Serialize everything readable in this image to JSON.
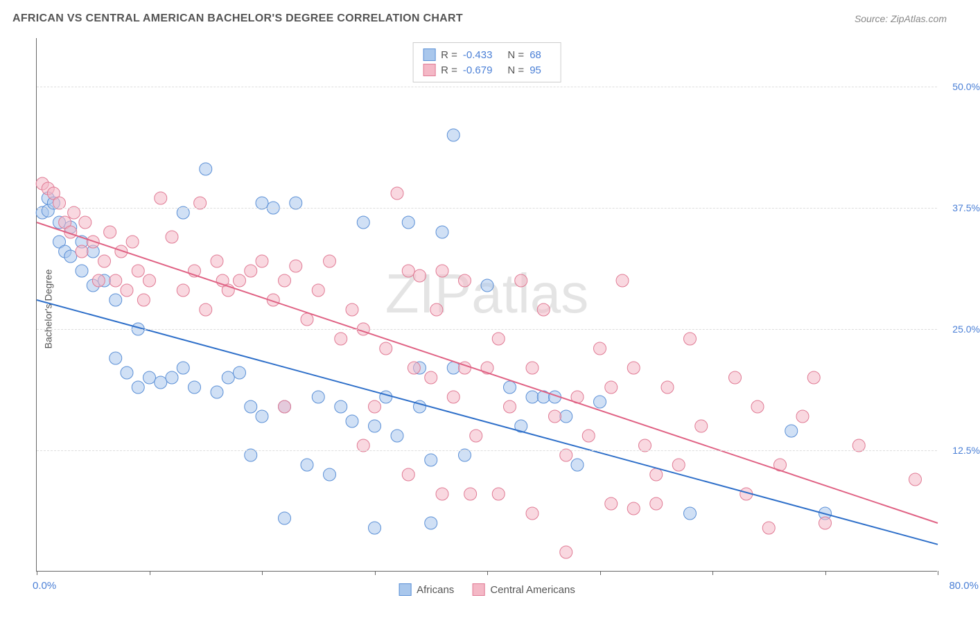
{
  "title": "AFRICAN VS CENTRAL AMERICAN BACHELOR'S DEGREE CORRELATION CHART",
  "source": "Source: ZipAtlas.com",
  "watermark": "ZIPatlas",
  "chart": {
    "type": "scatter",
    "background_color": "#ffffff",
    "grid_color": "#dddddd",
    "axis_color": "#666666",
    "y_label": "Bachelor's Degree",
    "y_label_color": "#555555",
    "tick_label_color": "#4a7fd6",
    "tick_fontsize": 14,
    "xlim": [
      0,
      80
    ],
    "ylim": [
      0,
      55
    ],
    "x_ticks": [
      0,
      10,
      20,
      30,
      40,
      50,
      60,
      70,
      80
    ],
    "x_tick_labels": {
      "0": "0.0%",
      "80": "80.0%"
    },
    "y_grid": [
      12.5,
      25.0,
      37.5,
      50.0
    ],
    "y_grid_labels": [
      "12.5%",
      "25.0%",
      "37.5%",
      "50.0%"
    ],
    "marker_radius": 9,
    "marker_opacity": 0.55,
    "line_width": 2,
    "series": [
      {
        "name": "Africans",
        "fill": "#a9c7ec",
        "stroke": "#5a8fd6",
        "line_color": "#2e6fc9",
        "trend": {
          "x1": 0,
          "y1": 28,
          "x2": 80,
          "y2": 2.8
        },
        "stats": {
          "R": "-0.433",
          "N": "68"
        },
        "points": [
          [
            0.5,
            37
          ],
          [
            1,
            38.5
          ],
          [
            1,
            37.2
          ],
          [
            1.5,
            38
          ],
          [
            2,
            36
          ],
          [
            2,
            34
          ],
          [
            2.5,
            33
          ],
          [
            3,
            32.5
          ],
          [
            3,
            35.5
          ],
          [
            4,
            31
          ],
          [
            4,
            34
          ],
          [
            5,
            29.5
          ],
          [
            5,
            33
          ],
          [
            6,
            30
          ],
          [
            7,
            28
          ],
          [
            7,
            22
          ],
          [
            8,
            20.5
          ],
          [
            9,
            25
          ],
          [
            9,
            19
          ],
          [
            10,
            20
          ],
          [
            11,
            19.5
          ],
          [
            12,
            20
          ],
          [
            13,
            21
          ],
          [
            13,
            37
          ],
          [
            14,
            19
          ],
          [
            15,
            41.5
          ],
          [
            16,
            18.5
          ],
          [
            17,
            20
          ],
          [
            18,
            20.5
          ],
          [
            19,
            17
          ],
          [
            19,
            12
          ],
          [
            20,
            16
          ],
          [
            20,
            38
          ],
          [
            21,
            37.5
          ],
          [
            22,
            17
          ],
          [
            22,
            5.5
          ],
          [
            23,
            38
          ],
          [
            24,
            11
          ],
          [
            25,
            18
          ],
          [
            26,
            10
          ],
          [
            27,
            17
          ],
          [
            28,
            15.5
          ],
          [
            29,
            36
          ],
          [
            30,
            15
          ],
          [
            30,
            4.5
          ],
          [
            31,
            18
          ],
          [
            32,
            14
          ],
          [
            33,
            36
          ],
          [
            34,
            17
          ],
          [
            34,
            21
          ],
          [
            35,
            11.5
          ],
          [
            35,
            5
          ],
          [
            36,
            35
          ],
          [
            37,
            21
          ],
          [
            37,
            45
          ],
          [
            38,
            12
          ],
          [
            40,
            29.5
          ],
          [
            42,
            19
          ],
          [
            43,
            15
          ],
          [
            44,
            18
          ],
          [
            45,
            18
          ],
          [
            46,
            18
          ],
          [
            47,
            16
          ],
          [
            48,
            11
          ],
          [
            50,
            17.5
          ],
          [
            58,
            6
          ],
          [
            67,
            14.5
          ],
          [
            70,
            6
          ]
        ]
      },
      {
        "name": "Central Americans",
        "fill": "#f4b8c6",
        "stroke": "#e07a94",
        "line_color": "#e06284",
        "trend": {
          "x1": 0,
          "y1": 36,
          "x2": 80,
          "y2": 5
        },
        "stats": {
          "R": "-0.679",
          "N": "95"
        },
        "points": [
          [
            0.5,
            40
          ],
          [
            1,
            39.5
          ],
          [
            1.5,
            39
          ],
          [
            2,
            38
          ],
          [
            2.5,
            36
          ],
          [
            3,
            35
          ],
          [
            3.3,
            37
          ],
          [
            4,
            33
          ],
          [
            4.3,
            36
          ],
          [
            5,
            34
          ],
          [
            5.5,
            30
          ],
          [
            6,
            32
          ],
          [
            6.5,
            35
          ],
          [
            7,
            30
          ],
          [
            7.5,
            33
          ],
          [
            8,
            29
          ],
          [
            8.5,
            34
          ],
          [
            9,
            31
          ],
          [
            9.5,
            28
          ],
          [
            10,
            30
          ],
          [
            11,
            38.5
          ],
          [
            12,
            34.5
          ],
          [
            13,
            29
          ],
          [
            14,
            31
          ],
          [
            14.5,
            38
          ],
          [
            15,
            27
          ],
          [
            16,
            32
          ],
          [
            16.5,
            30
          ],
          [
            17,
            29
          ],
          [
            18,
            30
          ],
          [
            19,
            31
          ],
          [
            20,
            32
          ],
          [
            21,
            28
          ],
          [
            22,
            30
          ],
          [
            23,
            31.5
          ],
          [
            24,
            26
          ],
          [
            25,
            29
          ],
          [
            26,
            32
          ],
          [
            27,
            24
          ],
          [
            28,
            27
          ],
          [
            29,
            25
          ],
          [
            30,
            17
          ],
          [
            31,
            23
          ],
          [
            32,
            39
          ],
          [
            33,
            31
          ],
          [
            33.5,
            21
          ],
          [
            34,
            30.5
          ],
          [
            35,
            20
          ],
          [
            35.5,
            27
          ],
          [
            36,
            31
          ],
          [
            37,
            18
          ],
          [
            38,
            21
          ],
          [
            38.5,
            8
          ],
          [
            39,
            14
          ],
          [
            40,
            21
          ],
          [
            41,
            24
          ],
          [
            42,
            17
          ],
          [
            43,
            30
          ],
          [
            44,
            21
          ],
          [
            45,
            27
          ],
          [
            46,
            16
          ],
          [
            47,
            12
          ],
          [
            48,
            18
          ],
          [
            49,
            14
          ],
          [
            50,
            23
          ],
          [
            51,
            19
          ],
          [
            52,
            30
          ],
          [
            53,
            21
          ],
          [
            54,
            13
          ],
          [
            55,
            7
          ],
          [
            56,
            19
          ],
          [
            57,
            11
          ],
          [
            58,
            24
          ],
          [
            59,
            15
          ],
          [
            62,
            20
          ],
          [
            63,
            8
          ],
          [
            64,
            17
          ],
          [
            65,
            4.5
          ],
          [
            66,
            11
          ],
          [
            68,
            16
          ],
          [
            69,
            20
          ],
          [
            70,
            5
          ],
          [
            73,
            13
          ],
          [
            78,
            9.5
          ],
          [
            47,
            2
          ],
          [
            44,
            6
          ],
          [
            51,
            7
          ],
          [
            53,
            6.5
          ],
          [
            55,
            10
          ],
          [
            41,
            8
          ],
          [
            36,
            8
          ],
          [
            33,
            10
          ],
          [
            29,
            13
          ],
          [
            38,
            30
          ],
          [
            22,
            17
          ]
        ]
      }
    ],
    "legend_top": {
      "R_label": "R =",
      "N_label": "N ="
    },
    "legend_bottom": [
      {
        "label": "Africans",
        "fill": "#a9c7ec",
        "stroke": "#5a8fd6"
      },
      {
        "label": "Central Americans",
        "fill": "#f4b8c6",
        "stroke": "#e07a94"
      }
    ]
  }
}
